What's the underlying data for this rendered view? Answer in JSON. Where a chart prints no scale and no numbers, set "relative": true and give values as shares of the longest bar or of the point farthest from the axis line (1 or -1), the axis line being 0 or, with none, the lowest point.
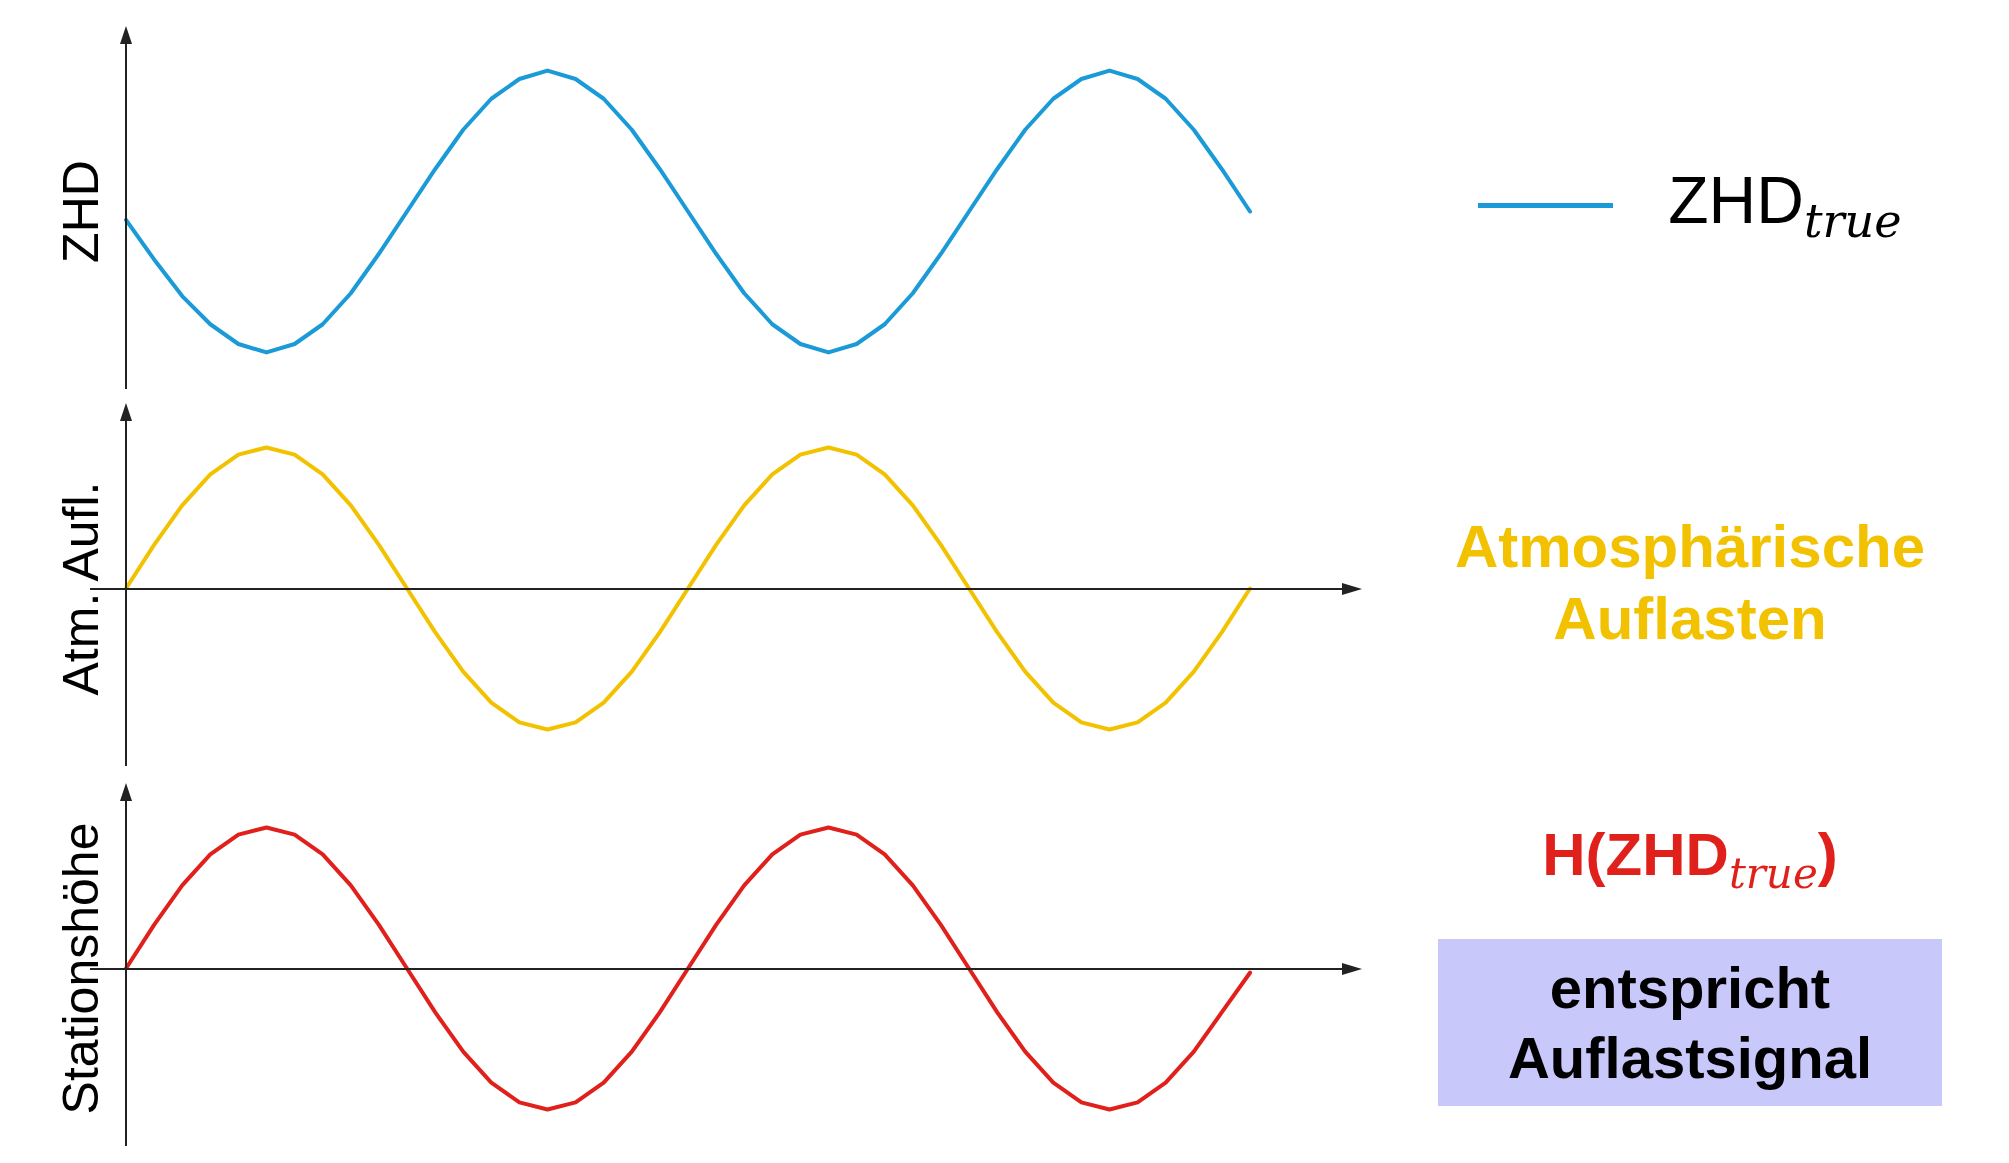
{
  "chart_data": [
    {
      "type": "line",
      "relative": true,
      "ylabel": "ZHD",
      "legend": "right",
      "marker": "none",
      "categories": [
        null,
        null,
        null,
        null,
        null,
        null,
        null,
        null,
        null,
        null,
        null,
        null,
        null,
        null,
        null,
        null,
        null,
        null,
        null,
        null,
        null,
        null,
        null,
        null,
        null,
        null,
        null,
        null,
        null,
        null,
        null,
        null,
        null,
        null,
        null,
        null,
        null,
        null,
        null,
        null,
        null
      ],
      "series": [
        {
          "name": "ZHD$_{true}$",
          "color": "#1a9ad6",
          "values": [
            0.47,
            0.33,
            0.2,
            0.1,
            0.03,
            0,
            0.03,
            0.1,
            0.21,
            0.35,
            0.5,
            0.65,
            0.79,
            0.9,
            0.97,
            1,
            0.97,
            0.9,
            0.79,
            0.65,
            0.5,
            0.35,
            0.21,
            0.1,
            0.03,
            0,
            0.03,
            0.1,
            0.21,
            0.35,
            0.5,
            0.65,
            0.79,
            0.9,
            0.97,
            1,
            0.97,
            0.9,
            0.79,
            0.65,
            0.5
          ]
        }
      ]
    },
    {
      "type": "line",
      "relative": true,
      "ylabel": "Atm. Aufl.",
      "marker": "none",
      "categories": [
        null,
        null,
        null,
        null,
        null,
        null,
        null,
        null,
        null,
        null,
        null,
        null,
        null,
        null,
        null,
        null,
        null,
        null,
        null,
        null,
        null,
        null,
        null,
        null,
        null,
        null,
        null,
        null,
        null,
        null,
        null,
        null,
        null,
        null,
        null,
        null,
        null,
        null,
        null,
        null,
        null
      ],
      "series": [
        {
          "name": "Atmosphärische Auflasten",
          "color": "#f2c200",
          "values": [
            0,
            0.31,
            0.59,
            0.81,
            0.95,
            1,
            0.95,
            0.81,
            0.59,
            0.31,
            0,
            -0.31,
            -0.59,
            -0.81,
            -0.95,
            -1,
            -0.95,
            -0.81,
            -0.59,
            -0.31,
            0,
            0.31,
            0.59,
            0.81,
            0.95,
            1,
            0.95,
            0.81,
            0.59,
            0.31,
            0,
            -0.31,
            -0.59,
            -0.81,
            -0.95,
            -1,
            -0.95,
            -0.81,
            -0.59,
            -0.31,
            0
          ]
        }
      ]
    },
    {
      "type": "line",
      "relative": true,
      "ylabel": "Stationshöhe",
      "marker": "none",
      "categories": [
        null,
        null,
        null,
        null,
        null,
        null,
        null,
        null,
        null,
        null,
        null,
        null,
        null,
        null,
        null,
        null,
        null,
        null,
        null,
        null,
        null,
        null,
        null,
        null,
        null,
        null,
        null,
        null,
        null,
        null,
        null,
        null,
        null,
        null,
        null,
        null,
        null,
        null,
        null,
        null,
        null
      ],
      "series": [
        {
          "name": "H(ZHD$_{true}$)",
          "color": "#e0201b",
          "values": [
            0,
            0.31,
            0.59,
            0.81,
            0.95,
            1,
            0.95,
            0.81,
            0.59,
            0.31,
            0,
            -0.31,
            -0.59,
            -0.81,
            -0.95,
            -1,
            -0.95,
            -0.81,
            -0.59,
            -0.31,
            0,
            0.31,
            0.59,
            0.81,
            0.95,
            1,
            0.95,
            0.81,
            0.59,
            0.31,
            0,
            -0.31,
            -0.59,
            -0.81,
            -0.95,
            -1,
            -0.95,
            -0.81,
            -0.59,
            -0.31,
            -0.03
          ]
        }
      ],
      "annotations": [
        "entspricht Auflastsignal"
      ]
    }
  ]
}
